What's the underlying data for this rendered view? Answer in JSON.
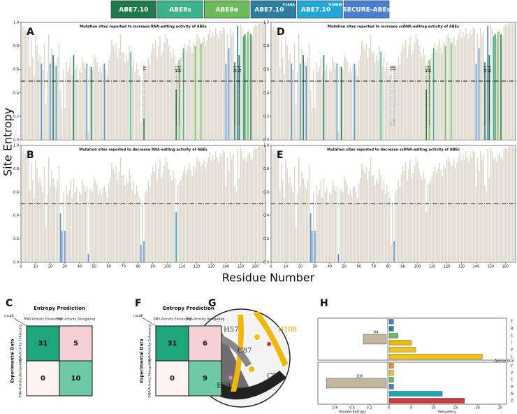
{
  "legend": [
    {
      "name": "ABE7.10",
      "color": "#1f7a4b"
    },
    {
      "name": "ABE8s",
      "color": "#3cb38a"
    },
    {
      "name": "ABE8e",
      "color": "#6cbd5a"
    },
    {
      "name": "ABE7.10",
      "sup": "F148A",
      "color": "#2a7f9e"
    },
    {
      "name": "ABE7.10",
      "sup": "V106W",
      "color": "#21a8d8"
    },
    {
      "name": "SECURE-ABEs",
      "color": "#4d7fd1"
    }
  ],
  "entropy_chart": {
    "ylabel": "Site Entropy",
    "xlabel": "Residue Number",
    "ylim": [
      0,
      1
    ],
    "xlim": [
      0,
      167
    ],
    "yticks": [
      {
        "value": 0,
        "label": "0.0"
      },
      {
        "value": 0.2,
        "label": "0.2"
      },
      {
        "value": 0.4,
        "label": "0.4"
      },
      {
        "value": 0.6,
        "label": "0.6"
      },
      {
        "value": 0.8,
        "label": "0.8"
      },
      {
        "value": 1,
        "label": "1.0"
      }
    ],
    "xticks": [
      0,
      10,
      20,
      30,
      40,
      50,
      60,
      70,
      80,
      90,
      100,
      110,
      120,
      130,
      140,
      150,
      160
    ],
    "threshold": 0.5,
    "color": "#ddd8cc",
    "values": [
      0.95,
      0.97,
      0.93,
      0.96,
      0.9,
      0.62,
      0.85,
      0.7,
      0.55,
      0.88,
      0.8,
      0.68,
      0.73,
      0.65,
      0.6,
      0.82,
      0.3,
      0.58,
      0.9,
      0.65,
      0.78,
      0.72,
      0.66,
      0.63,
      0.7,
      0.82,
      0.42,
      0.27,
      0.6,
      0.27,
      0.66,
      0.58,
      0.62,
      0.7,
      0.55,
      0.72,
      0.6,
      0.64,
      0.5,
      0.6,
      0.58,
      0.7,
      0.66,
      0.61,
      0.65,
      0.07,
      0.63,
      0.62,
      0.6,
      0.73,
      0.7,
      0.66,
      0.58,
      0.62,
      0.57,
      0.64,
      0.65,
      0.6,
      0.55,
      0.68,
      0.72,
      0.85,
      0.8,
      0.76,
      0.82,
      0.7,
      0.78,
      0.9,
      0.74,
      0.75,
      0.66,
      0.72,
      0.68,
      0.8,
      0.75,
      0.62,
      0.7,
      0.58,
      0.66,
      0.6,
      0.55,
      0.15,
      0.5,
      0.18,
      0.6,
      0.62,
      0.7,
      0.64,
      0.75,
      0.82,
      0.78,
      0.85,
      0.7,
      0.8,
      0.88,
      0.72,
      0.76,
      0.83,
      0.9,
      0.86,
      0.8,
      0.75,
      0.7,
      0.78,
      0.72,
      0.43,
      0.66,
      0.68,
      0.7,
      0.74,
      0.78,
      0.82,
      0.76,
      0.8,
      0.85,
      0.79,
      0.74,
      0.83,
      0.8,
      0.88,
      0.9,
      0.86,
      0.82,
      0.84,
      0.88,
      0.8,
      0.85,
      0.9,
      0.94,
      0.87,
      0.92,
      0.88,
      0.95,
      0.9,
      0.86,
      0.93,
      0.9,
      0.96,
      0.94,
      0.65,
      0.9,
      0.78,
      0.95,
      0.88,
      0.92,
      0.66,
      0.6,
      0.97,
      0.72,
      0.98,
      0.95,
      0.88,
      0.9,
      0.86,
      0.92,
      0.94,
      0.9,
      0.88,
      0.96,
      0.98,
      0.97,
      0.99,
      1.0,
      0.99,
      1.0,
      0.98
    ]
  },
  "panels": [
    {
      "letter": "A",
      "title": "Mutation sites reported to increase RNA-editing activity of ABEs",
      "highlights": [
        {
          "residue": 14,
          "color": "#5b8fd6"
        },
        {
          "residue": 20,
          "color": "#5b8fd6"
        },
        {
          "residue": 22,
          "color": "#1f7a4b"
        },
        {
          "residue": 24,
          "color": "#5b8fd6"
        },
        {
          "residue": 36,
          "color": "#1f7a4b"
        },
        {
          "residue": 45,
          "color": "#5b8fd6"
        },
        {
          "residue": 48,
          "color": "#1f7a4b"
        },
        {
          "residue": 57,
          "color": "#5b8fd6"
        },
        {
          "residue": 75,
          "color": "#3cb38a"
        },
        {
          "residue": 84,
          "color": "#1f7a4b"
        },
        {
          "residue": 106,
          "color": "#1f7a4b"
        },
        {
          "residue": 108,
          "color": "#6cbd5a"
        },
        {
          "residue": 111,
          "color": "#3cb38a"
        },
        {
          "residue": 119,
          "color": "#6cbd5a"
        },
        {
          "residue": 123,
          "color": "#6cbd5a"
        },
        {
          "residue": 140,
          "color": "#5b8fd6"
        },
        {
          "residue": 142,
          "color": "#5b8fd6"
        },
        {
          "residue": 146,
          "color": "#1f7a4b"
        },
        {
          "residue": 148,
          "color": "#2a7f9e"
        },
        {
          "residue": 149,
          "color": "#1f7a4b"
        },
        {
          "residue": 152,
          "color": "#3cb38a"
        },
        {
          "residue": 153,
          "color": "#1f7a4b"
        },
        {
          "residue": 155,
          "color": "#6cbd5a"
        },
        {
          "residue": 157,
          "color": "#1f7a4b"
        }
      ],
      "markers": [
        84,
        106,
        108,
        146,
        149
      ]
    },
    {
      "letter": "D",
      "title": "Mutation sites reported to increase ssDNA-editing activity of ABEs",
      "highlights": [
        {
          "residue": 14,
          "color": "#5b8fd6"
        },
        {
          "residue": 20,
          "color": "#5b8fd6"
        },
        {
          "residue": 22,
          "color": "#1f7a4b"
        },
        {
          "residue": 24,
          "color": "#5b8fd6"
        },
        {
          "residue": 36,
          "color": "#1f7a4b"
        },
        {
          "residue": 45,
          "color": "#5b8fd6"
        },
        {
          "residue": 48,
          "color": "#1f7a4b"
        },
        {
          "residue": 57,
          "color": "#5b8fd6"
        },
        {
          "residue": 75,
          "color": "#3cb38a"
        },
        {
          "residue": 106,
          "color": "#1f7a4b"
        },
        {
          "residue": 108,
          "color": "#6cbd5a"
        },
        {
          "residue": 111,
          "color": "#3cb38a"
        },
        {
          "residue": 119,
          "color": "#6cbd5a"
        },
        {
          "residue": 123,
          "color": "#6cbd5a"
        },
        {
          "residue": 140,
          "color": "#5b8fd6"
        },
        {
          "residue": 142,
          "color": "#5b8fd6"
        },
        {
          "residue": 146,
          "color": "#1f7a4b"
        },
        {
          "residue": 148,
          "color": "#2a7f9e"
        },
        {
          "residue": 149,
          "color": "#1f7a4b"
        },
        {
          "residue": 152,
          "color": "#3cb38a"
        },
        {
          "residue": 153,
          "color": "#1f7a4b"
        },
        {
          "residue": 155,
          "color": "#6cbd5a"
        },
        {
          "residue": 157,
          "color": "#1f7a4b"
        }
      ],
      "markers": [
        82,
        84,
        106,
        108,
        146,
        149
      ]
    },
    {
      "letter": "B",
      "title": "Mutation sites reported to decrease RNA-editing activity of ABEs",
      "highlights": [
        {
          "residue": 27,
          "color": "#5b8fd6"
        },
        {
          "residue": 28,
          "color": "#5b8fd6"
        },
        {
          "residue": 30,
          "color": "#5b8fd6"
        },
        {
          "residue": 46,
          "color": "#5b8fd6"
        },
        {
          "residue": 82,
          "color": "#5b8fd6"
        },
        {
          "residue": 84,
          "color": "#5b8fd6"
        },
        {
          "residue": 106,
          "color": "#21a8d8"
        }
      ],
      "markers": []
    },
    {
      "letter": "E",
      "title": "Mutation sites reported to decrease ssDNA-editing activity of ABEs",
      "highlights": [
        {
          "residue": 27,
          "color": "#5b8fd6"
        },
        {
          "residue": 28,
          "color": "#5b8fd6"
        },
        {
          "residue": 30,
          "color": "#5b8fd6"
        },
        {
          "residue": 46,
          "color": "#5b8fd6"
        },
        {
          "residue": 84,
          "color": "#5b8fd6"
        }
      ],
      "markers": []
    }
  ],
  "matrices": [
    {
      "letter": "C",
      "n": "n=46",
      "header": "Entropy Prediction",
      "row_header": "Experimental Data",
      "columns": [
        "RNA-Activity Enhancing",
        "RNA-Activity Abrogating"
      ],
      "rows": [
        "RNA-Activity Enhancing",
        "RNA-Activity Abrogating"
      ],
      "cells": [
        [
          31,
          5
        ],
        [
          0,
          10
        ]
      ],
      "cell_colors": [
        [
          "#1ea57a",
          "#f3d0d3"
        ],
        [
          "#fdf1f1",
          "#6fc9a6"
        ]
      ]
    },
    {
      "letter": "F",
      "n": "n=46",
      "header": "Entropy Prediction",
      "row_header": "Experimental Data",
      "columns": [
        "DNA-Activity Enhancing",
        "DNA-Activity Abrogating"
      ],
      "rows": [
        "DNA-Activity Enhancing",
        "DNA-Activity Abrogating"
      ],
      "cells": [
        [
          31,
          6
        ],
        [
          0,
          9
        ]
      ],
      "cell_colors": [
        [
          "#1ea57a",
          "#f3d0d3"
        ],
        [
          "#fdf1f1",
          "#6fc9a6"
        ]
      ]
    }
  ],
  "structure": {
    "letter": "G",
    "labels": [
      {
        "text": "H57",
        "color": "#333333"
      },
      {
        "text": "D108",
        "color": "#e0a100"
      },
      {
        "text": "C87",
        "color": "#333333"
      },
      {
        "text": "C90",
        "color": "#222222"
      },
      {
        "text": "E59",
        "color": "#222222"
      }
    ]
  },
  "aa_chart": {
    "letter": "H",
    "xlabel_left": "Binned Entropy",
    "xlabel_right": "Frequency",
    "ylabel": "Amino Acid",
    "entropy_xlim": [
      0.8,
      0
    ],
    "entropy_xticks": [
      0.6,
      0.4,
      0.2
    ],
    "freq_xlim": [
      0,
      26.5
    ],
    "freq_xticks": [
      0,
      5,
      10,
      15,
      20,
      25
    ],
    "entropy_color": "#c2b8a0",
    "groups": [
      {
        "site": "84",
        "entropy": 0.27,
        "amino_acids": [
          "T",
          "R",
          "C",
          "I",
          "V",
          "L"
        ],
        "frequencies": [
          1,
          1,
          2,
          5,
          6,
          21
        ],
        "colors": [
          "#4d7fd1",
          "#2a7f9e",
          "#6cbd5a",
          "#f2b705",
          "#f2c318",
          "#f4c20d"
        ]
      },
      {
        "site": "108",
        "entropy": 0.7,
        "amino_acids": [
          "Y",
          "V",
          "C",
          "H",
          "N",
          "D"
        ],
        "frequencies": [
          1,
          1,
          1,
          1,
          12,
          17
        ],
        "colors": [
          "#f08a24",
          "#f2c318",
          "#6cbd5a",
          "#4d7fd1",
          "#1ea5b5",
          "#d0393b"
        ]
      }
    ]
  }
}
